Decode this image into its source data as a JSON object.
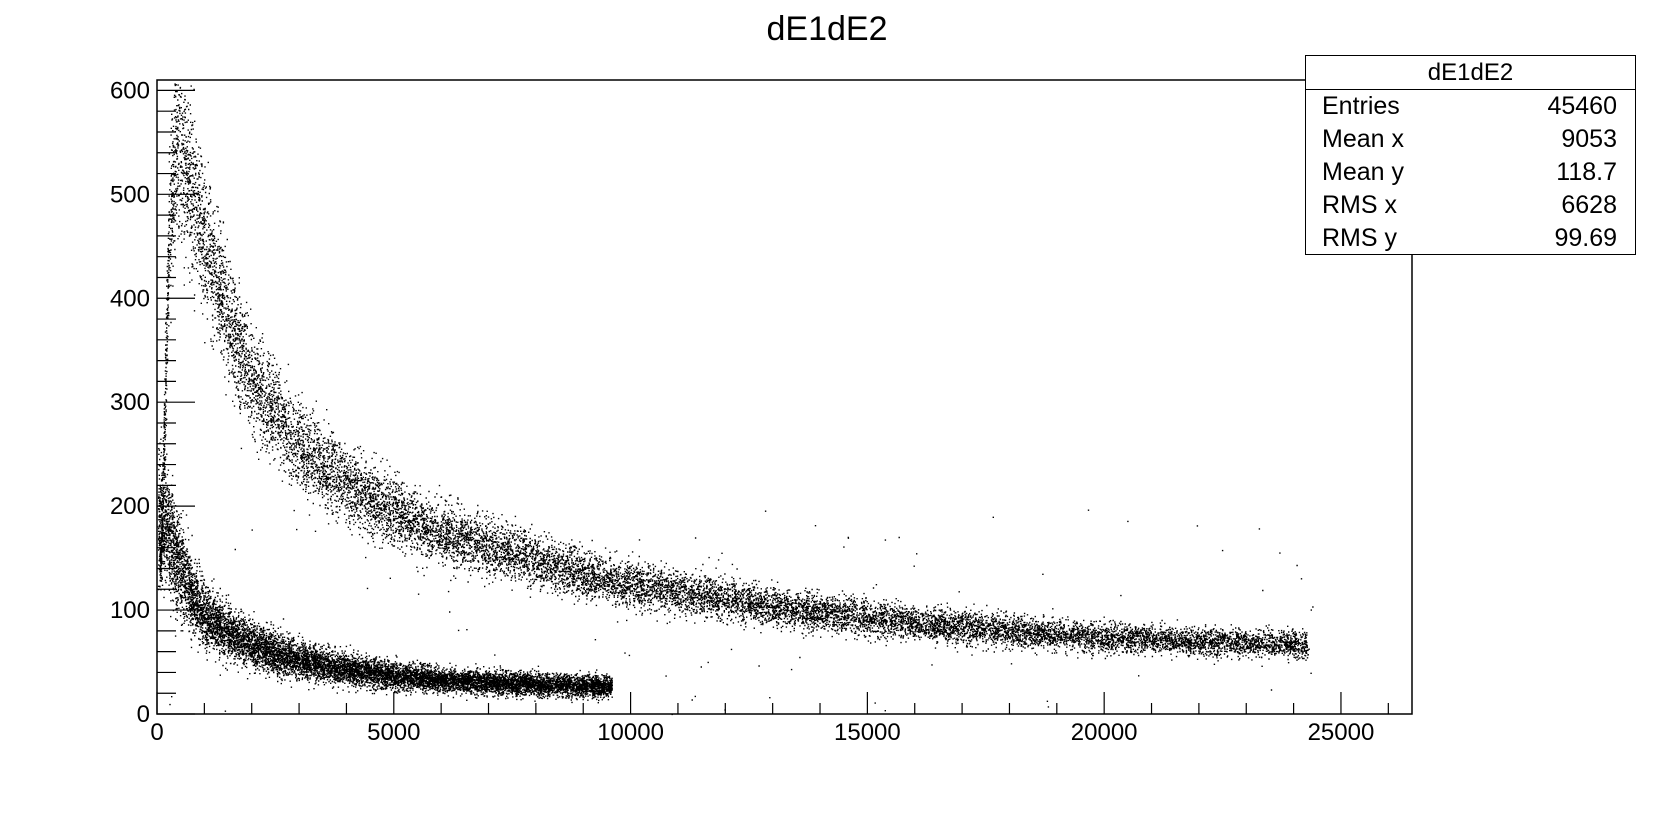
{
  "chart_data": {
    "type": "scatter",
    "title": "dE1dE2",
    "xlabel": "",
    "ylabel": "",
    "xlim": [
      0,
      26500
    ],
    "ylim": [
      0,
      610
    ],
    "x_ticks": [
      0,
      5000,
      10000,
      15000,
      20000,
      25000
    ],
    "y_ticks": [
      0,
      100,
      200,
      300,
      400,
      500,
      600
    ],
    "grid": false,
    "marker_color": "#000000",
    "bands": [
      {
        "description": "upper band",
        "ridge": [
          [
            80,
            150
          ],
          [
            250,
            470
          ],
          [
            400,
            540
          ],
          [
            600,
            530
          ],
          [
            800,
            490
          ],
          [
            1000,
            455
          ],
          [
            1500,
            380
          ],
          [
            2000,
            320
          ],
          [
            3000,
            260
          ],
          [
            4000,
            220
          ],
          [
            5000,
            195
          ],
          [
            6000,
            175
          ],
          [
            7000,
            160
          ],
          [
            8000,
            148
          ],
          [
            9000,
            135
          ],
          [
            10000,
            125
          ],
          [
            12000,
            110
          ],
          [
            14000,
            98
          ],
          [
            16000,
            88
          ],
          [
            18000,
            80
          ],
          [
            20000,
            74
          ],
          [
            22000,
            70
          ],
          [
            24200,
            67
          ]
        ],
        "x_range": [
          50,
          24300
        ]
      },
      {
        "description": "lower band",
        "ridge": [
          [
            30,
            195
          ],
          [
            200,
            180
          ],
          [
            400,
            150
          ],
          [
            700,
            118
          ],
          [
            1000,
            95
          ],
          [
            1500,
            78
          ],
          [
            2000,
            66
          ],
          [
            3000,
            52
          ],
          [
            4000,
            43
          ],
          [
            5000,
            37
          ],
          [
            6000,
            33
          ],
          [
            7000,
            31
          ],
          [
            8000,
            29
          ],
          [
            9500,
            27
          ]
        ],
        "x_range": [
          20,
          9600
        ]
      }
    ]
  },
  "stats": {
    "title": "dE1dE2",
    "rows": [
      {
        "label": "Entries",
        "value": "45460"
      },
      {
        "label": "Mean x",
        "value": "9053"
      },
      {
        "label": "Mean y",
        "value": "118.7"
      },
      {
        "label": "RMS x",
        "value": "6628"
      },
      {
        "label": "RMS y",
        "value": "99.69"
      }
    ]
  }
}
